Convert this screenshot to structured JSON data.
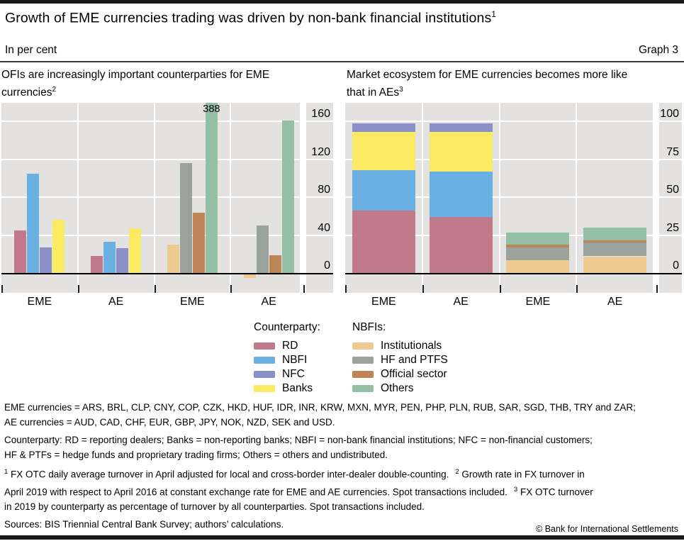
{
  "header": {
    "title": "Growth of EME currencies trading was driven by non-bank financial institutions",
    "title_footnote_marker": "1",
    "units_label": "In per cent",
    "graph_label": "Graph 3"
  },
  "palette": {
    "RD": "#c1798c",
    "NBFI": "#6bb0e3",
    "NFC": "#8b91c7",
    "Banks": "#fbea64",
    "Institutionals": "#ecca90",
    "HF and PTFS": "#99a29b",
    "Official sector": "#bd8455",
    "Others": "#93c0a4",
    "plot_background": "#e3e2e0",
    "gridline": "#ffffff",
    "zero_line": "#000000",
    "border_bar": "#191919"
  },
  "chart_data": [
    {
      "type": "bar",
      "title": "OFIs are increasingly important counterparties for EME currencies",
      "title_lines": [
        "OFIs are increasingly important counterparties for EME",
        "currencies"
      ],
      "title_footnote_marker": "2",
      "unit": "per cent",
      "yticks": [
        0,
        40,
        80,
        120,
        160
      ],
      "ylim": [
        -20,
        180
      ],
      "grid": true,
      "legend_position": "below",
      "groups": [
        {
          "label": "EME",
          "bars": [
            {
              "series": "RD",
              "value": 45
            },
            {
              "series": "NBFI",
              "value": 105
            },
            {
              "series": "NFC",
              "value": 27
            },
            {
              "series": "Banks",
              "value": 56
            }
          ]
        },
        {
          "label": "AE",
          "bars": [
            {
              "series": "RD",
              "value": 18
            },
            {
              "series": "NBFI",
              "value": 33
            },
            {
              "series": "NFC",
              "value": 26
            },
            {
              "series": "Banks",
              "value": 47
            }
          ]
        },
        {
          "label": "EME",
          "bars": [
            {
              "series": "Institutionals",
              "value": 30
            },
            {
              "series": "HF and PTFS",
              "value": 116
            },
            {
              "series": "Official sector",
              "value": 64
            },
            {
              "series": "Others",
              "value": 388,
              "annotation": "388"
            }
          ]
        },
        {
          "label": "AE",
          "bars": [
            {
              "series": "Institutionals",
              "value": -4
            },
            {
              "series": "HF and PTFS",
              "value": 50
            },
            {
              "series": "Official sector",
              "value": 19
            },
            {
              "series": "Others",
              "value": 161
            }
          ]
        }
      ]
    },
    {
      "type": "stacked-bar",
      "title": "Market ecosystem for EME currencies becomes more like that in AEs",
      "title_lines": [
        "Market ecosystem for EME currencies becomes more like",
        "that in AEs"
      ],
      "title_footnote_marker": "3",
      "unit": "per cent",
      "yticks": [
        0,
        25,
        50,
        75,
        100
      ],
      "ylim": [
        0,
        112
      ],
      "grid": true,
      "groups": [
        {
          "label": "EME",
          "segments": [
            {
              "series": "RD",
              "value": 41
            },
            {
              "series": "NBFI",
              "value": 27
            },
            {
              "series": "Banks",
              "value": 25
            },
            {
              "series": "NFC",
              "value": 6
            }
          ]
        },
        {
          "label": "AE",
          "segments": [
            {
              "series": "RD",
              "value": 37
            },
            {
              "series": "NBFI",
              "value": 30
            },
            {
              "series": "Banks",
              "value": 26
            },
            {
              "series": "NFC",
              "value": 6
            }
          ]
        },
        {
          "label": "EME",
          "segments": [
            {
              "series": "Institutionals",
              "value": 8.5
            },
            {
              "series": "HF and PTFS",
              "value": 8.5
            },
            {
              "series": "Official sector",
              "value": 1.5
            },
            {
              "series": "Others",
              "value": 8
            }
          ]
        },
        {
          "label": "AE",
          "segments": [
            {
              "series": "Institutionals",
              "value": 11
            },
            {
              "series": "HF and PTFS",
              "value": 9
            },
            {
              "series": "Official sector",
              "value": 1.5
            },
            {
              "series": "Others",
              "value": 8.5
            }
          ]
        }
      ]
    }
  ],
  "legend": {
    "columns": [
      {
        "heading": "Counterparty:",
        "items": [
          "RD",
          "NBFI",
          "NFC",
          "Banks"
        ]
      },
      {
        "heading": "NBFIs:",
        "items": [
          "Institutionals",
          "HF and PTFS",
          "Official sector",
          "Others"
        ]
      }
    ]
  },
  "footnotes": {
    "paragraphs": [
      [
        {
          "text": "EME currencies = ARS, BRL, CLP, CNY, COP, CZK, HKD, HUF, IDR, INR, KRW, MXN, MYR, PEN, PHP, PLN, RUB, SAR, SGD, THB, TRY and ZAR;"
        },
        {
          "br": true
        },
        {
          "text": "AE currencies = AUD, CAD, CHF, EUR, GBP, JPY, NOK, NZD, SEK and USD."
        }
      ],
      [
        {
          "text": "Counterparty: RD = reporting dealers; Banks = non-reporting banks; NBFI = non-bank financial institutions; NFC = non-financial customers;"
        },
        {
          "br": true
        },
        {
          "text": "HF & PTFs = hedge funds and proprietary trading firms; Others = others and undistributed."
        }
      ],
      [
        {
          "sup": "1"
        },
        {
          "text": " FX OTC daily average turnover in April adjusted for local and cross-border inter-dealer double-counting."
        },
        {
          "sup": "2",
          "gap": true
        },
        {
          "text": " Growth rate in FX turnover in"
        },
        {
          "br": true
        },
        {
          "text": "April 2019 with respect to April 2016 at constant exchange rate for EME and AE currencies. Spot transactions included."
        },
        {
          "sup": "3",
          "gap": true
        },
        {
          "text": " FX OTC turnover"
        },
        {
          "br": true
        },
        {
          "text": "in 2019 by counterparty as percentage of turnover by all counterparties. Spot transactions included."
        }
      ],
      [
        {
          "text": "Sources: BIS Triennial Central Bank Survey; authors’ calculations."
        }
      ]
    ]
  },
  "footer": {
    "copyright": "© Bank for International Settlements"
  }
}
